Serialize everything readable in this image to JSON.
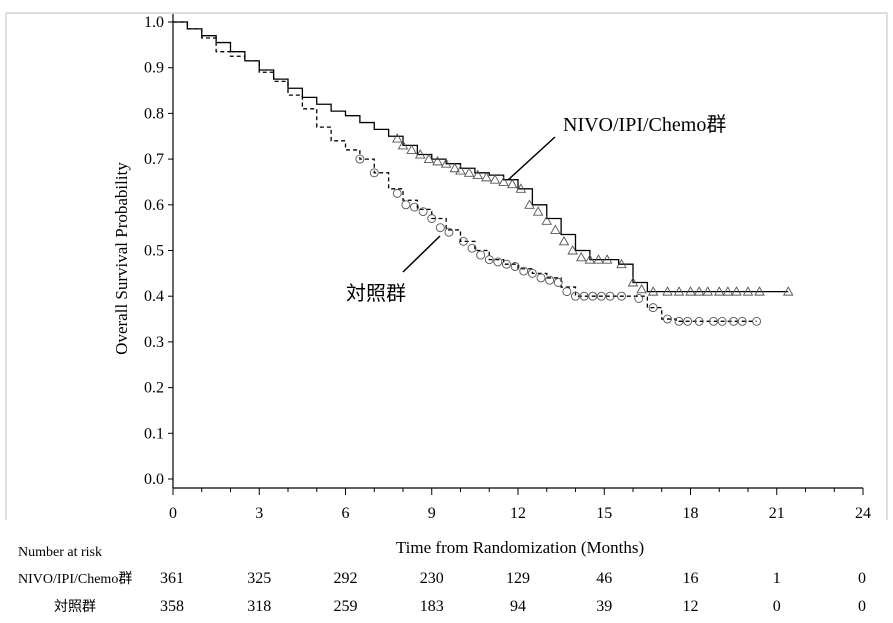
{
  "chart_data": {
    "type": "line",
    "title": "",
    "xlabel": "Time from Randomization (Months)",
    "ylabel": "Overall Survival Probability",
    "xlim": [
      0,
      24
    ],
    "ylim": [
      0.0,
      1.0
    ],
    "x_ticks": [
      "0",
      "3",
      "6",
      "9",
      "12",
      "15",
      "18",
      "21",
      "24"
    ],
    "y_ticks": [
      "0.0",
      "0.1",
      "0.2",
      "0.3",
      "0.4",
      "0.5",
      "0.6",
      "0.7",
      "0.8",
      "0.9",
      "1.0"
    ],
    "grid": false,
    "legend": "none",
    "series": [
      {
        "name": "NIVO/IPI/Chemo群",
        "line_style": "solid",
        "censor_marker": "triangle",
        "color": "#000000",
        "x": [
          0,
          0.5,
          1.0,
          1.5,
          2.0,
          2.5,
          3.0,
          3.5,
          4.0,
          4.5,
          5.0,
          5.5,
          6.0,
          6.5,
          7.0,
          7.5,
          8.0,
          8.5,
          9.0,
          9.5,
          10.0,
          10.5,
          11.0,
          11.5,
          12.0,
          12.5,
          13.0,
          13.5,
          14.0,
          14.5,
          15.0,
          15.5,
          16.0,
          16.5,
          17.0,
          18.0,
          19.0,
          20.0,
          21.0,
          21.4
        ],
        "y": [
          1.0,
          0.985,
          0.97,
          0.955,
          0.935,
          0.915,
          0.895,
          0.875,
          0.855,
          0.835,
          0.82,
          0.805,
          0.795,
          0.78,
          0.765,
          0.75,
          0.73,
          0.71,
          0.7,
          0.69,
          0.68,
          0.67,
          0.665,
          0.655,
          0.635,
          0.6,
          0.57,
          0.535,
          0.5,
          0.48,
          0.48,
          0.47,
          0.43,
          0.41,
          0.41,
          0.41,
          0.41,
          0.41,
          0.41,
          0.41
        ],
        "censored": [
          [
            7.8,
            0.745
          ],
          [
            8.0,
            0.73
          ],
          [
            8.3,
            0.72
          ],
          [
            8.6,
            0.71
          ],
          [
            8.9,
            0.7
          ],
          [
            9.2,
            0.695
          ],
          [
            9.5,
            0.69
          ],
          [
            9.8,
            0.68
          ],
          [
            10.0,
            0.675
          ],
          [
            10.3,
            0.67
          ],
          [
            10.6,
            0.665
          ],
          [
            10.9,
            0.66
          ],
          [
            11.2,
            0.655
          ],
          [
            11.5,
            0.65
          ],
          [
            11.8,
            0.645
          ],
          [
            12.1,
            0.635
          ],
          [
            12.4,
            0.6
          ],
          [
            12.7,
            0.585
          ],
          [
            13.0,
            0.565
          ],
          [
            13.3,
            0.545
          ],
          [
            13.6,
            0.52
          ],
          [
            13.9,
            0.5
          ],
          [
            14.2,
            0.485
          ],
          [
            14.5,
            0.48
          ],
          [
            14.8,
            0.48
          ],
          [
            15.1,
            0.48
          ],
          [
            15.6,
            0.47
          ],
          [
            16.0,
            0.43
          ],
          [
            16.3,
            0.415
          ],
          [
            16.7,
            0.41
          ],
          [
            17.2,
            0.41
          ],
          [
            17.6,
            0.41
          ],
          [
            18.0,
            0.41
          ],
          [
            18.3,
            0.41
          ],
          [
            18.6,
            0.41
          ],
          [
            19.0,
            0.41
          ],
          [
            19.3,
            0.41
          ],
          [
            19.6,
            0.41
          ],
          [
            20.0,
            0.41
          ],
          [
            20.4,
            0.41
          ],
          [
            21.4,
            0.41
          ]
        ]
      },
      {
        "name": "対照群",
        "line_style": "dashed",
        "censor_marker": "circle",
        "color": "#000000",
        "x": [
          0,
          0.5,
          1.0,
          1.5,
          2.0,
          2.5,
          3.0,
          3.5,
          4.0,
          4.5,
          5.0,
          5.5,
          6.0,
          6.5,
          7.0,
          7.5,
          8.0,
          8.5,
          9.0,
          9.5,
          10.0,
          10.5,
          11.0,
          11.5,
          12.0,
          12.5,
          13.0,
          13.5,
          14.0,
          14.5,
          15.0,
          15.5,
          16.0,
          16.5,
          17.0,
          17.5,
          18.0,
          19.0,
          20.0,
          20.3
        ],
        "y": [
          1.0,
          0.985,
          0.965,
          0.935,
          0.925,
          0.915,
          0.89,
          0.87,
          0.84,
          0.81,
          0.77,
          0.74,
          0.72,
          0.7,
          0.67,
          0.635,
          0.61,
          0.59,
          0.57,
          0.545,
          0.52,
          0.5,
          0.48,
          0.47,
          0.46,
          0.45,
          0.44,
          0.42,
          0.4,
          0.4,
          0.4,
          0.4,
          0.4,
          0.375,
          0.35,
          0.345,
          0.345,
          0.345,
          0.345,
          0.345
        ],
        "censored": [
          [
            6.5,
            0.7
          ],
          [
            7.0,
            0.67
          ],
          [
            7.8,
            0.625
          ],
          [
            8.1,
            0.6
          ],
          [
            8.4,
            0.595
          ],
          [
            8.7,
            0.585
          ],
          [
            9.0,
            0.57
          ],
          [
            9.3,
            0.55
          ],
          [
            9.6,
            0.54
          ],
          [
            10.1,
            0.52
          ],
          [
            10.4,
            0.505
          ],
          [
            10.7,
            0.49
          ],
          [
            11.0,
            0.48
          ],
          [
            11.3,
            0.475
          ],
          [
            11.6,
            0.47
          ],
          [
            11.9,
            0.465
          ],
          [
            12.2,
            0.455
          ],
          [
            12.5,
            0.45
          ],
          [
            12.8,
            0.44
          ],
          [
            13.1,
            0.435
          ],
          [
            13.4,
            0.43
          ],
          [
            13.7,
            0.41
          ],
          [
            14.0,
            0.4
          ],
          [
            14.3,
            0.4
          ],
          [
            14.6,
            0.4
          ],
          [
            14.9,
            0.4
          ],
          [
            15.2,
            0.4
          ],
          [
            15.6,
            0.4
          ],
          [
            16.2,
            0.395
          ],
          [
            16.7,
            0.375
          ],
          [
            17.2,
            0.35
          ],
          [
            17.6,
            0.345
          ],
          [
            17.9,
            0.345
          ],
          [
            18.3,
            0.345
          ],
          [
            18.8,
            0.345
          ],
          [
            19.1,
            0.345
          ],
          [
            19.5,
            0.345
          ],
          [
            19.8,
            0.345
          ],
          [
            20.3,
            0.345
          ]
        ]
      }
    ],
    "annotations": [
      {
        "text": "NIVO/IPI/Chemo群",
        "series": "NIVO/IPI/Chemo群"
      },
      {
        "text": "対照群",
        "series": "対照群"
      }
    ],
    "risk_table": {
      "title": "Number at risk",
      "times": [
        0,
        3,
        6,
        9,
        12,
        15,
        18,
        21,
        24
      ],
      "rows": [
        {
          "label": "NIVO/IPI/Chemo群",
          "values": [
            "361",
            "325",
            "292",
            "230",
            "129",
            "46",
            "16",
            "1",
            "0"
          ]
        },
        {
          "label": "対照群",
          "values": [
            "358",
            "318",
            "259",
            "183",
            "94",
            "39",
            "12",
            "0",
            "0"
          ]
        }
      ]
    }
  }
}
